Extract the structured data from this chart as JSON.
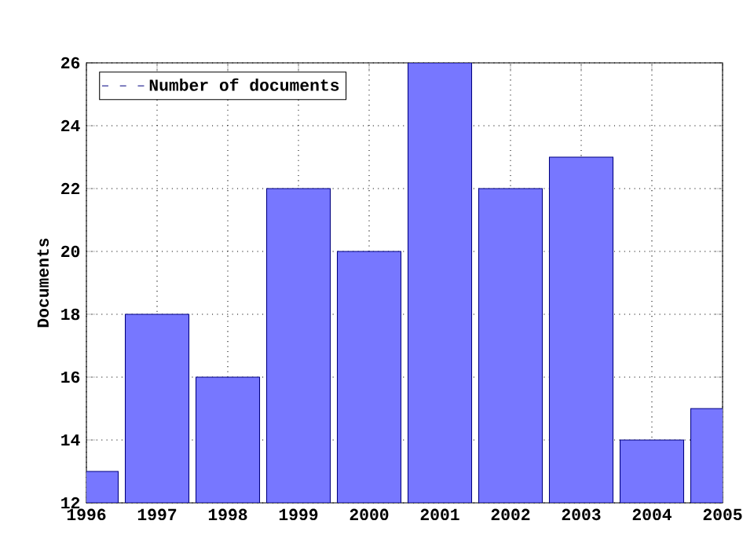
{
  "chart_data": {
    "type": "bar",
    "ylabel": "Documents",
    "x": [
      1996,
      1997,
      1998,
      1999,
      2000,
      2001,
      2002,
      2003,
      2004,
      2005
    ],
    "series": [
      {
        "name": "Number of documents",
        "color": "#7777ff",
        "values": [
          13,
          18,
          16,
          22,
          20,
          26,
          22,
          23,
          14,
          15
        ]
      }
    ],
    "xlim": [
      1996,
      2005
    ],
    "xticks": [
      1996,
      1997,
      1998,
      1999,
      2000,
      2001,
      2002,
      2003,
      2004,
      2005
    ],
    "ylim": [
      12,
      26
    ],
    "yticks": [
      12,
      14,
      16,
      18,
      20,
      22,
      24,
      26
    ],
    "grid": true,
    "legend": "top left"
  }
}
